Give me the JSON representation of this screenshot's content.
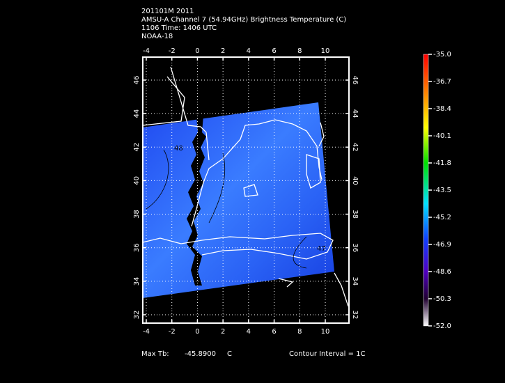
{
  "header": {
    "lines": [
      "201101M 2011",
      "AMSU-A Channel 7 (54.94GHz) Brightness Temperature (C)",
      "1106 Time: 1406 UTC",
      "NOAA-18"
    ]
  },
  "map": {
    "lon_ticks": [
      -4,
      -2,
      0,
      2,
      4,
      6,
      8,
      10
    ],
    "lat_ticks": [
      32,
      34,
      36,
      38,
      40,
      42,
      44,
      46
    ],
    "contour_labels": [
      "48",
      "47"
    ]
  },
  "colorbar": {
    "ticks": [
      {
        "value": -35.0,
        "label": "-35.0"
      },
      {
        "value": -36.7,
        "label": "-36.7"
      },
      {
        "value": -38.4,
        "label": "-38.4"
      },
      {
        "value": -40.1,
        "label": "-40.1"
      },
      {
        "value": -41.8,
        "label": "-41.8"
      },
      {
        "value": -43.5,
        "label": "-43.5"
      },
      {
        "value": -45.2,
        "label": "-45.2"
      },
      {
        "value": -46.9,
        "label": "-46.9"
      },
      {
        "value": -48.6,
        "label": "-48.6"
      },
      {
        "value": -50.3,
        "label": "-50.3"
      },
      {
        "value": -52.0,
        "label": "-52.0"
      }
    ]
  },
  "footer": {
    "max_label": "Max Tb:",
    "max_value": "-45.8900",
    "unit": "C",
    "contour": "Contour Interval = 1C"
  }
}
